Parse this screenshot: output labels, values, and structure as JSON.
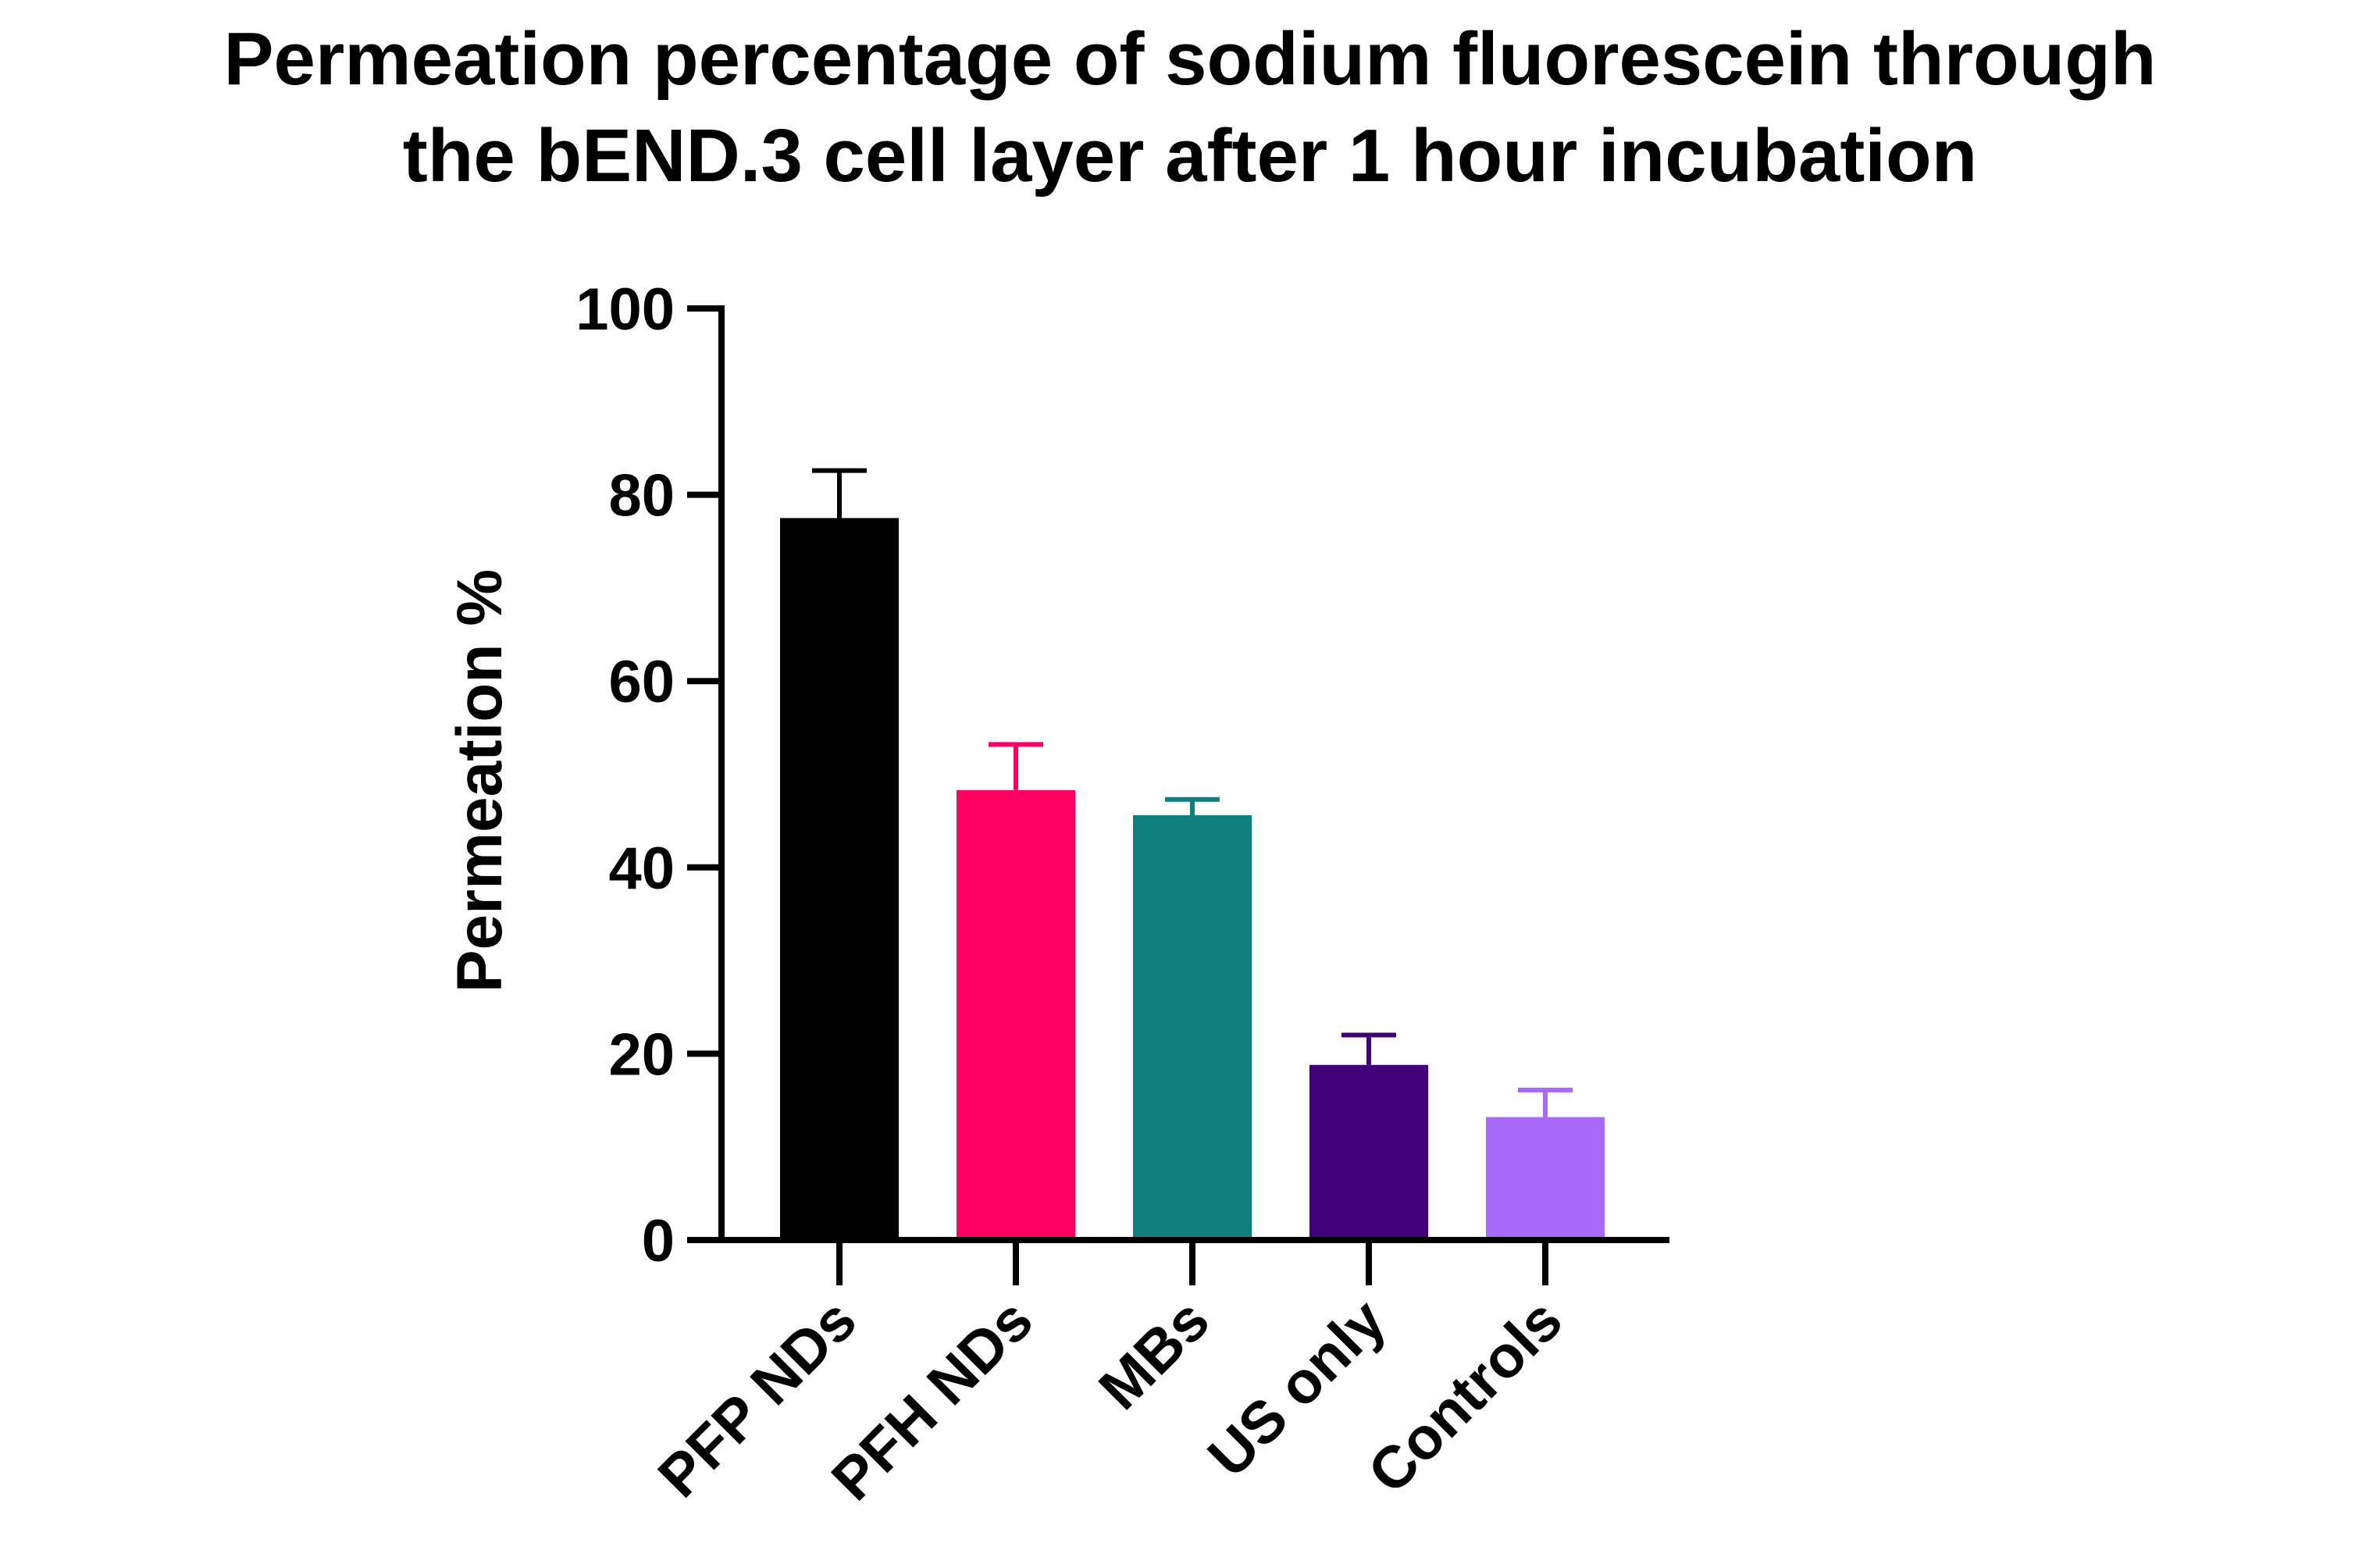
{
  "chart_data": {
    "type": "bar",
    "title_lines": [
      "Permeation percentage of sodium fluorescein through",
      "the bEND.3 cell layer after 1 hour incubation"
    ],
    "xlabel": "",
    "ylabel": "Permeation %",
    "ylim": [
      0,
      100
    ],
    "yticks": [
      0,
      20,
      40,
      60,
      80,
      100
    ],
    "ytick_labels": [
      "0",
      "20",
      "40",
      "60",
      "80",
      "100"
    ],
    "categories": [
      "PFP NDs",
      "PFH NDs",
      "MBs",
      "US only",
      "Controls"
    ],
    "values": [
      77.5,
      48.3,
      45.6,
      18.8,
      13.2
    ],
    "error_upper": [
      82.6,
      53.2,
      47.3,
      22.0,
      16.1
    ],
    "colors": [
      "#000000",
      "#ff0062",
      "#117f7d",
      "#410179",
      "#a86af9"
    ],
    "grid": false,
    "legend": "none"
  }
}
